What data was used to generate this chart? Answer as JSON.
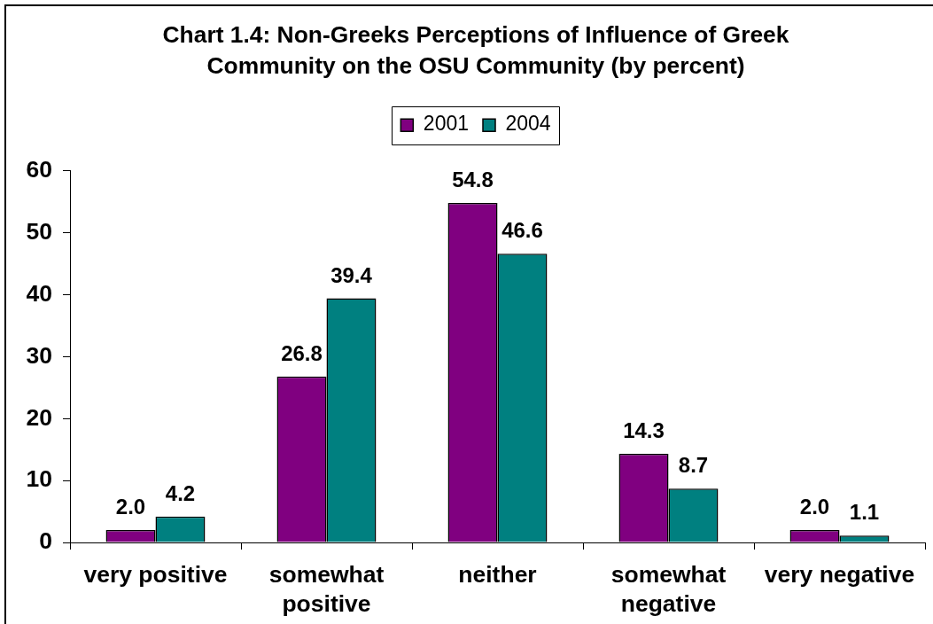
{
  "chart_data": {
    "type": "bar",
    "title": "Chart 1.4: Non-Greeks Perceptions of Influence of Greek Community on the OSU Community (by percent)",
    "categories": [
      "very positive",
      "somewhat positive",
      "neither",
      "somewhat negative",
      "very negative"
    ],
    "series": [
      {
        "name": "2001",
        "color": "#800080",
        "values": [
          2.0,
          26.8,
          54.8,
          14.3,
          2.0
        ],
        "value_labels": [
          "2.0",
          "26.8",
          "54.8",
          "14.3",
          "2.0"
        ]
      },
      {
        "name": "2004",
        "color": "#008080",
        "values": [
          4.2,
          39.4,
          46.6,
          8.7,
          1.1
        ],
        "value_labels": [
          "4.2",
          "39.4",
          "46.6",
          "8.7",
          "1.1"
        ]
      }
    ],
    "ylim": [
      0,
      60
    ],
    "yticks": [
      0,
      10,
      20,
      30,
      40,
      50,
      60
    ],
    "legend": "top"
  }
}
